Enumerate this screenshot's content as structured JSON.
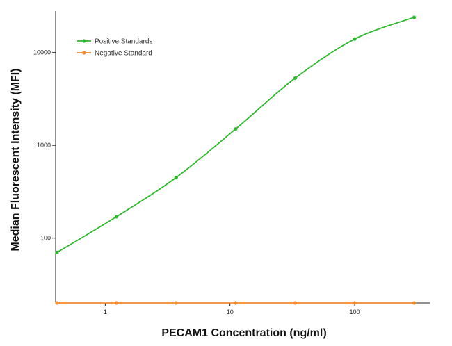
{
  "chart_data": {
    "type": "line",
    "xlabel": "PECAM1 Concentration (ng/ml)",
    "ylabel": "Median  Fluorescent Intensity  (MFI)",
    "xscale": "log",
    "yscale": "log",
    "xlim": [
      0.4,
      400
    ],
    "ylim": [
      20,
      28000
    ],
    "x_ticks": [
      1,
      10,
      100
    ],
    "x_tick_labels": [
      "1",
      "10",
      "100"
    ],
    "y_ticks": [
      100,
      1000,
      10000
    ],
    "y_tick_labels": [
      "100",
      "1000",
      "10000"
    ],
    "grid": false,
    "legend_position": "top-left",
    "x": [
      0.41,
      1.23,
      3.7,
      11.1,
      33.3,
      100,
      300
    ],
    "series": [
      {
        "name": "Positive Standards",
        "color": "#2db82d",
        "marker": "circle",
        "fit": "smooth-curve",
        "values": [
          70,
          170,
          450,
          1500,
          5300,
          14000,
          24000
        ]
      },
      {
        "name": "Negative Standard",
        "color": "#f28a2e",
        "marker": "circle",
        "fit": "straight-line",
        "values": [
          20,
          20,
          20,
          20,
          20,
          20,
          20
        ]
      }
    ]
  }
}
